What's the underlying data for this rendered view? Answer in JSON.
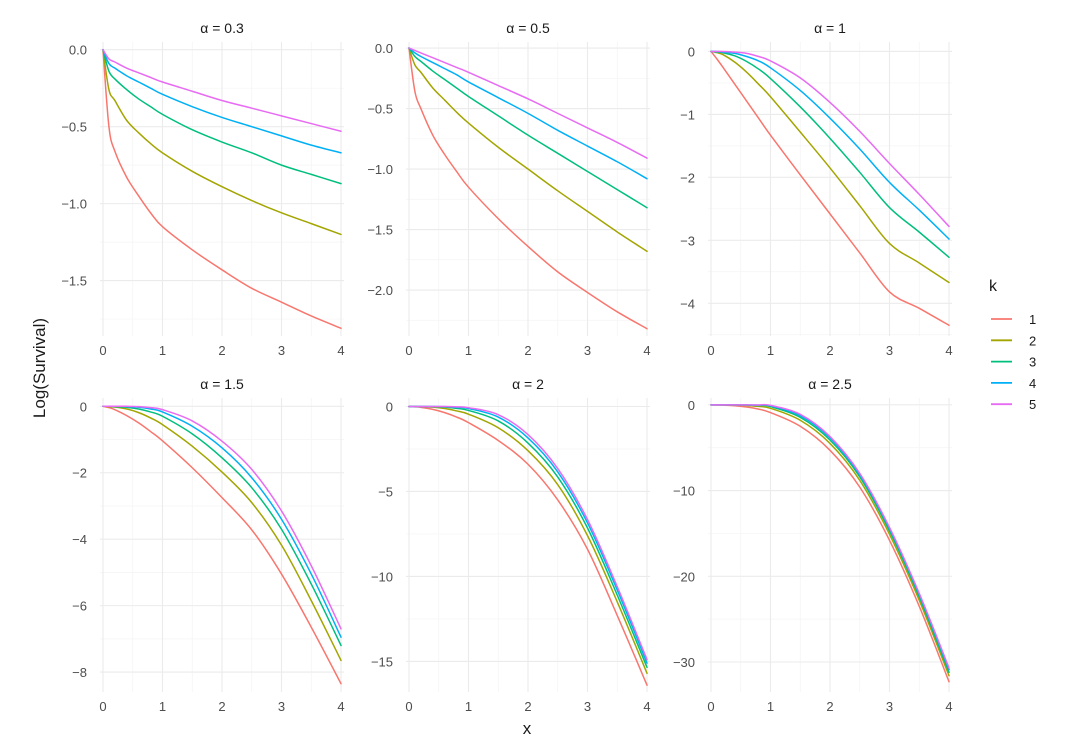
{
  "chart_data": {
    "type": "line",
    "xlabel": "x",
    "ylabel": "Log(Survival)",
    "legend": {
      "title": "k",
      "placement": "right",
      "entries": [
        {
          "label": "1",
          "color": "#F8766D"
        },
        {
          "label": "2",
          "color": "#A3A500"
        },
        {
          "label": "3",
          "color": "#00BF7D"
        },
        {
          "label": "4",
          "color": "#00B0F6"
        },
        {
          "label": "5",
          "color": "#E76BF3"
        }
      ]
    },
    "grid": true,
    "x": [
      0,
      0.1,
      0.2,
      0.4,
      0.6,
      0.8,
      1,
      1.5,
      2,
      2.5,
      3,
      3.5,
      4
    ],
    "panels": [
      {
        "title": "α = 0.3",
        "xlim": [
          -0.05,
          4.05
        ],
        "ylim": [
          -1.86,
          0.05
        ],
        "xticks": [
          0,
          1,
          2,
          3,
          4
        ],
        "yticks": [
          0,
          -0.5,
          -1,
          -1.5
        ],
        "ytick_labels": [
          "0.0",
          "−0.5",
          "−1.0",
          "−1.5"
        ],
        "series": [
          {
            "name": "1",
            "values": [
              0,
              -0.5,
              -0.66,
              -0.83,
              -0.95,
              -1.06,
              -1.15,
              -1.3,
              -1.43,
              -1.55,
              -1.64,
              -1.73,
              -1.81
            ]
          },
          {
            "name": "2",
            "values": [
              0,
              -0.26,
              -0.33,
              -0.46,
              -0.54,
              -0.61,
              -0.67,
              -0.79,
              -0.89,
              -0.98,
              -1.06,
              -1.13,
              -1.2
            ]
          },
          {
            "name": "3",
            "values": [
              0,
              -0.14,
              -0.19,
              -0.26,
              -0.32,
              -0.37,
              -0.42,
              -0.52,
              -0.6,
              -0.67,
              -0.75,
              -0.81,
              -0.87
            ]
          },
          {
            "name": "4",
            "values": [
              0,
              -0.09,
              -0.12,
              -0.17,
              -0.21,
              -0.25,
              -0.29,
              -0.37,
              -0.44,
              -0.5,
              -0.56,
              -0.62,
              -0.67
            ]
          },
          {
            "name": "5",
            "values": [
              0,
              -0.06,
              -0.08,
              -0.12,
              -0.15,
              -0.18,
              -0.21,
              -0.27,
              -0.33,
              -0.38,
              -0.43,
              -0.48,
              -0.53
            ]
          }
        ]
      },
      {
        "title": "α = 0.5",
        "xlim": [
          -0.05,
          4.05
        ],
        "ylim": [
          -2.38,
          0.05
        ],
        "xticks": [
          0,
          1,
          2,
          3,
          4
        ],
        "yticks": [
          0,
          -0.5,
          -1,
          -1.5,
          -2
        ],
        "ytick_labels": [
          "0.0",
          "−0.5",
          "−1.0",
          "−1.5",
          "−2.0"
        ],
        "series": [
          {
            "name": "1",
            "values": [
              0,
              -0.36,
              -0.5,
              -0.72,
              -0.88,
              -1.02,
              -1.15,
              -1.41,
              -1.64,
              -1.85,
              -2.02,
              -2.18,
              -2.32
            ]
          },
          {
            "name": "2",
            "values": [
              0,
              -0.14,
              -0.2,
              -0.33,
              -0.43,
              -0.53,
              -0.62,
              -0.82,
              -1.0,
              -1.18,
              -1.35,
              -1.52,
              -1.68
            ]
          },
          {
            "name": "3",
            "values": [
              0,
              -0.07,
              -0.11,
              -0.19,
              -0.26,
              -0.33,
              -0.4,
              -0.56,
              -0.72,
              -0.87,
              -1.02,
              -1.17,
              -1.32
            ]
          },
          {
            "name": "4",
            "values": [
              0,
              -0.04,
              -0.07,
              -0.12,
              -0.17,
              -0.22,
              -0.28,
              -0.41,
              -0.54,
              -0.68,
              -0.81,
              -0.94,
              -1.08
            ]
          },
          {
            "name": "5",
            "values": [
              0,
              -0.02,
              -0.04,
              -0.08,
              -0.12,
              -0.16,
              -0.2,
              -0.31,
              -0.42,
              -0.54,
              -0.66,
              -0.78,
              -0.91
            ]
          }
        ]
      },
      {
        "title": "α = 1",
        "xlim": [
          -0.05,
          4.05
        ],
        "ylim": [
          -4.52,
          0.15
        ],
        "xticks": [
          0,
          1,
          2,
          3,
          4
        ],
        "yticks": [
          0,
          -1,
          -2,
          -3,
          -4
        ],
        "ytick_labels": [
          "0",
          "−1",
          "−2",
          "−3",
          "−4"
        ],
        "series": [
          {
            "name": "1",
            "values": [
              0,
              -0.12,
              -0.25,
              -0.52,
              -0.79,
              -1.06,
              -1.33,
              -1.96,
              -2.58,
              -3.2,
              -3.82,
              -4.08,
              -4.35
            ]
          },
          {
            "name": "2",
            "values": [
              0,
              -0.02,
              -0.05,
              -0.17,
              -0.33,
              -0.52,
              -0.72,
              -1.28,
              -1.85,
              -2.45,
              -3.05,
              -3.36,
              -3.67
            ]
          },
          {
            "name": "3",
            "values": [
              0,
              -0.01,
              -0.02,
              -0.07,
              -0.16,
              -0.28,
              -0.43,
              -0.88,
              -1.38,
              -1.92,
              -2.48,
              -2.87,
              -3.27
            ]
          },
          {
            "name": "4",
            "values": [
              0,
              0,
              -0.01,
              -0.03,
              -0.08,
              -0.15,
              -0.26,
              -0.62,
              -1.06,
              -1.55,
              -2.08,
              -2.52,
              -2.98
            ]
          },
          {
            "name": "5",
            "values": [
              0,
              0,
              0,
              -0.01,
              -0.03,
              -0.08,
              -0.15,
              -0.42,
              -0.81,
              -1.27,
              -1.78,
              -2.27,
              -2.78
            ]
          }
        ]
      },
      {
        "title": "α = 1.5",
        "xlim": [
          -0.05,
          4.05
        ],
        "ylim": [
          -8.6,
          0.25
        ],
        "xticks": [
          0,
          1,
          2,
          3,
          4
        ],
        "yticks": [
          0,
          -2,
          -4,
          -6,
          -8
        ],
        "ytick_labels": [
          "0",
          "−2",
          "−4",
          "−6",
          "−8"
        ],
        "series": [
          {
            "name": "1",
            "values": [
              0,
              -0.04,
              -0.1,
              -0.28,
              -0.5,
              -0.76,
              -1.04,
              -1.85,
              -2.75,
              -3.72,
              -5.05,
              -6.65,
              -8.35
            ]
          },
          {
            "name": "2",
            "values": [
              0,
              -0.01,
              -0.02,
              -0.08,
              -0.19,
              -0.35,
              -0.55,
              -1.2,
              -1.98,
              -2.9,
              -4.18,
              -5.85,
              -7.65
            ]
          },
          {
            "name": "3",
            "values": [
              0,
              0,
              -0.01,
              -0.03,
              -0.08,
              -0.17,
              -0.3,
              -0.83,
              -1.55,
              -2.45,
              -3.7,
              -5.35,
              -7.2
            ]
          },
          {
            "name": "4",
            "values": [
              0,
              0,
              0,
              -0.01,
              -0.03,
              -0.08,
              -0.17,
              -0.6,
              -1.25,
              -2.15,
              -3.4,
              -5.05,
              -6.95
            ]
          },
          {
            "name": "5",
            "values": [
              0,
              0,
              0,
              0,
              -0.01,
              -0.04,
              -0.1,
              -0.44,
              -1.05,
              -1.9,
              -3.15,
              -4.8,
              -6.7
            ]
          }
        ]
      },
      {
        "title": "α = 2",
        "xlim": [
          -0.05,
          4.05
        ],
        "ylim": [
          -16.8,
          0.5
        ],
        "xticks": [
          0,
          1,
          2,
          3,
          4
        ],
        "yticks": [
          0,
          -5,
          -10,
          -15
        ],
        "ytick_labels": [
          "0",
          "−5",
          "−10",
          "−15"
        ],
        "series": [
          {
            "name": "1",
            "values": [
              0,
              -0.02,
              -0.05,
              -0.17,
              -0.36,
              -0.62,
              -0.95,
              -2.0,
              -3.4,
              -5.5,
              -8.4,
              -12.3,
              -16.4
            ]
          },
          {
            "name": "2",
            "values": [
              0,
              0,
              -0.01,
              -0.04,
              -0.12,
              -0.26,
              -0.45,
              -1.25,
              -2.6,
              -4.6,
              -7.6,
              -11.5,
              -15.7
            ]
          },
          {
            "name": "3",
            "values": [
              0,
              0,
              0,
              -0.01,
              -0.04,
              -0.11,
              -0.23,
              -0.85,
              -2.15,
              -4.15,
              -7.15,
              -11.1,
              -15.35
            ]
          },
          {
            "name": "4",
            "values": [
              0,
              0,
              0,
              0,
              -0.01,
              -0.05,
              -0.12,
              -0.62,
              -1.85,
              -3.85,
              -6.85,
              -10.8,
              -15.1
            ]
          },
          {
            "name": "5",
            "values": [
              0,
              0,
              0,
              0,
              0,
              -0.02,
              -0.07,
              -0.48,
              -1.65,
              -3.65,
              -6.65,
              -10.6,
              -14.9
            ]
          }
        ]
      },
      {
        "title": "α = 2.5",
        "xlim": [
          -0.05,
          4.05
        ],
        "ylim": [
          -33.5,
          0.8
        ],
        "xticks": [
          0,
          1,
          2,
          3,
          4
        ],
        "yticks": [
          0,
          -10,
          -20,
          -30
        ],
        "ytick_labels": [
          "0",
          "−10",
          "−20",
          "−30"
        ],
        "series": [
          {
            "name": "1",
            "values": [
              0,
              -0.01,
              -0.03,
              -0.1,
              -0.25,
              -0.5,
              -0.9,
              -2.5,
              -5.3,
              -9.6,
              -15.8,
              -23.5,
              -32.3
            ]
          },
          {
            "name": "2",
            "values": [
              0,
              0,
              0,
              -0.02,
              -0.07,
              -0.18,
              -0.4,
              -1.8,
              -4.5,
              -8.8,
              -15.1,
              -22.8,
              -31.6
            ]
          },
          {
            "name": "3",
            "values": [
              0,
              0,
              0,
              0,
              -0.02,
              -0.07,
              -0.2,
              -1.45,
              -4.1,
              -8.4,
              -14.7,
              -22.4,
              -31.2
            ]
          },
          {
            "name": "4",
            "values": [
              0,
              0,
              0,
              0,
              0,
              -0.03,
              -0.11,
              -1.25,
              -3.85,
              -8.15,
              -14.45,
              -22.15,
              -30.9
            ]
          },
          {
            "name": "5",
            "values": [
              0,
              0,
              0,
              0,
              0,
              -0.01,
              -0.06,
              -1.1,
              -3.7,
              -8.0,
              -14.3,
              -22.0,
              -30.7
            ]
          }
        ]
      }
    ]
  }
}
